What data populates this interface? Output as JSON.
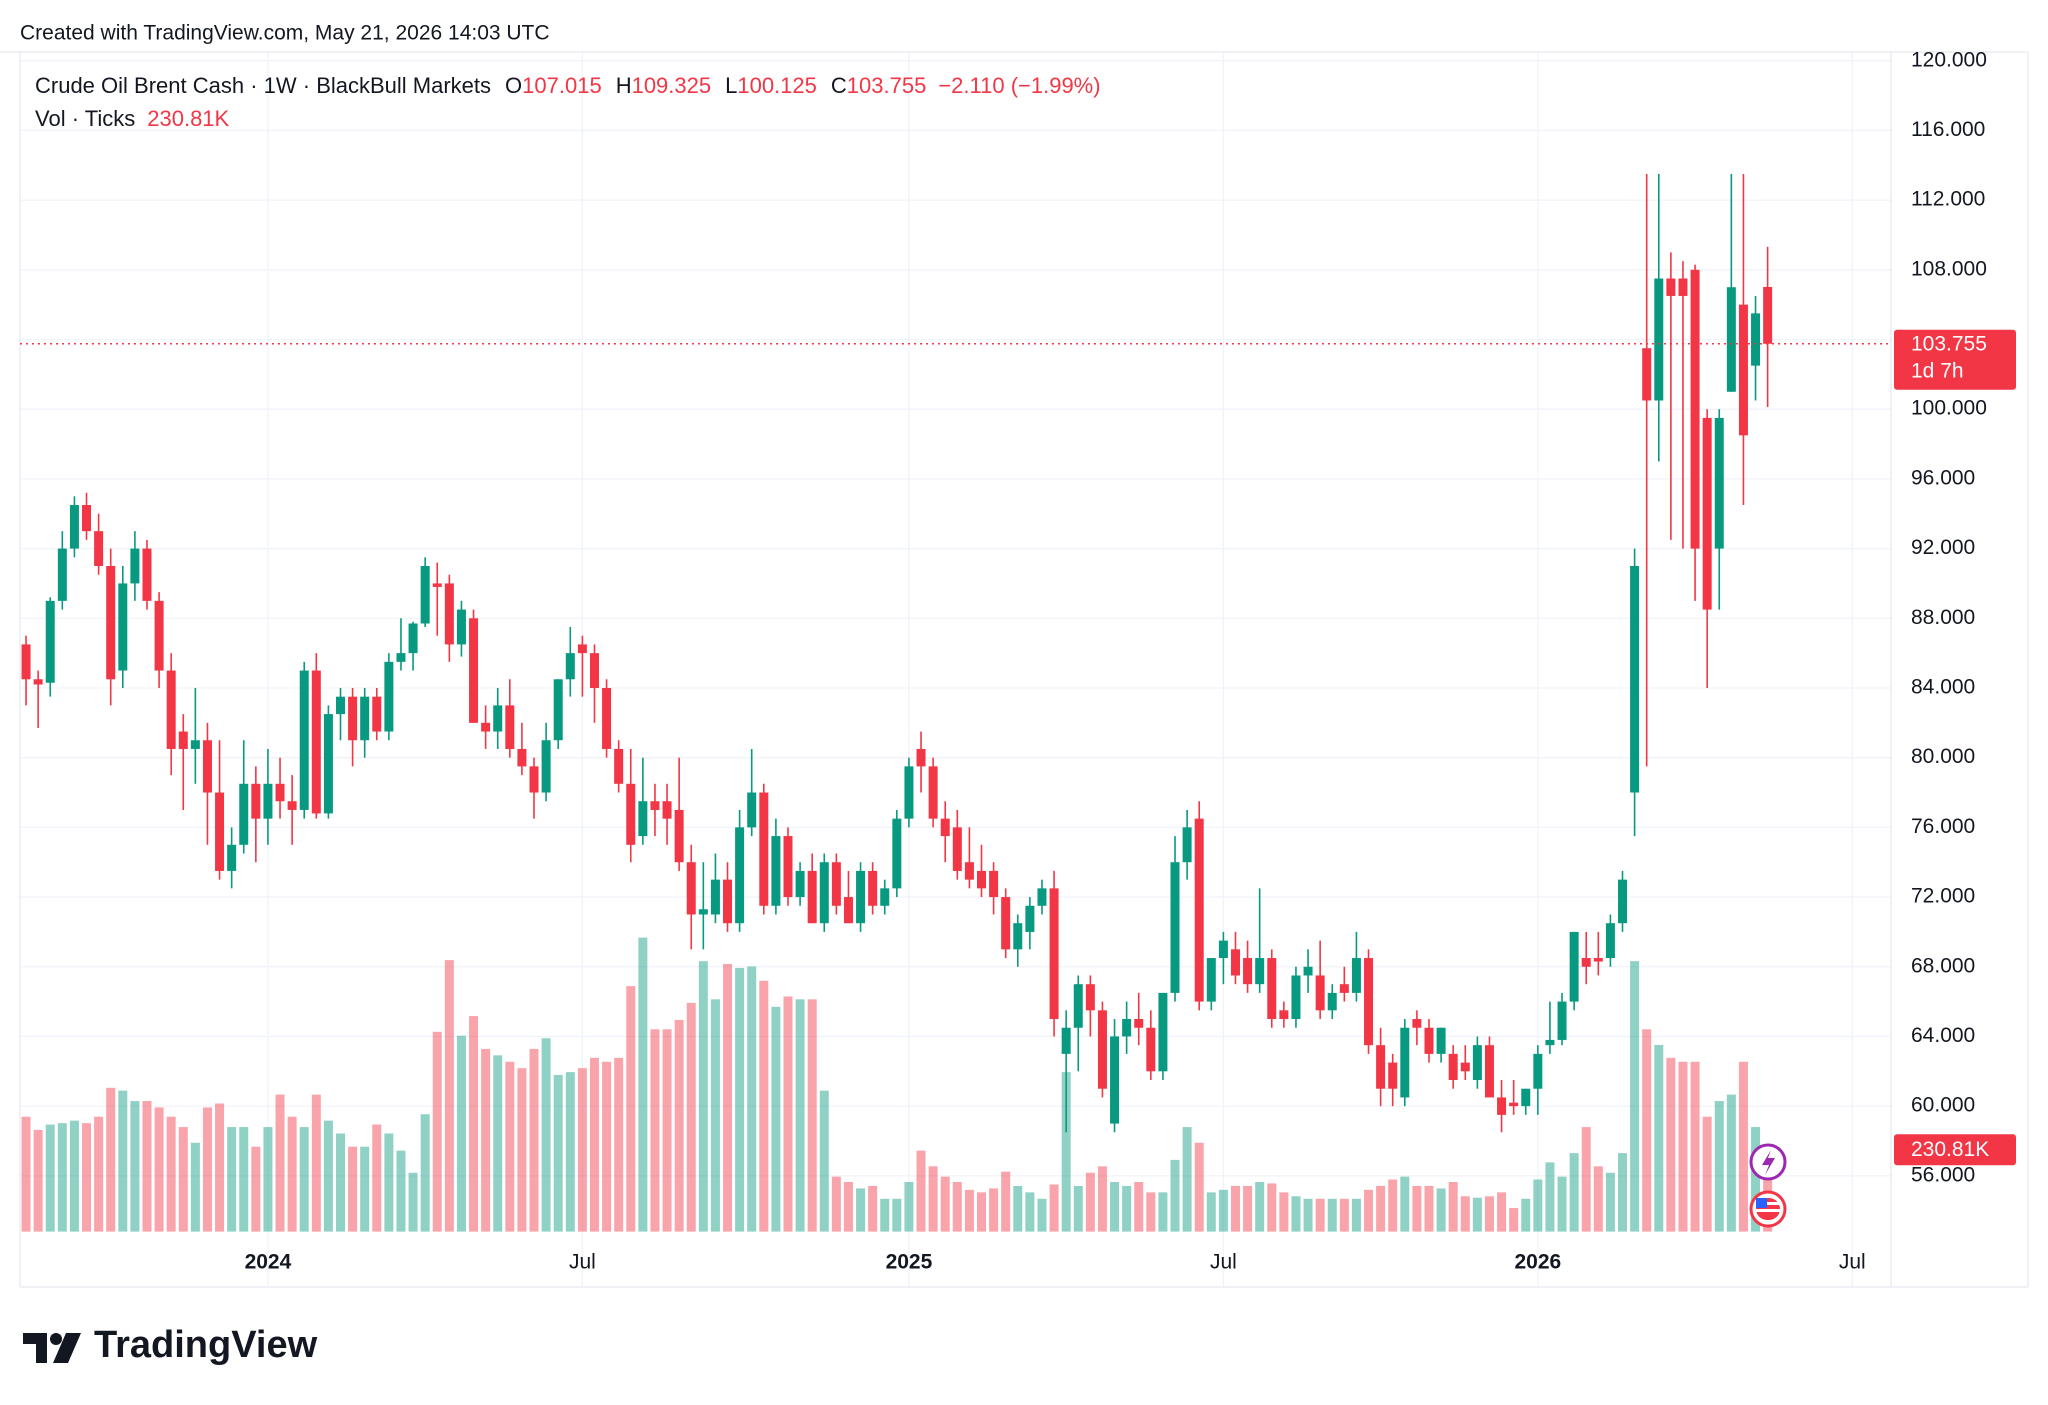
{
  "header": "Created with TradingView.com, May 21, 2026 14:03 UTC",
  "brand": "TradingView",
  "chart_data": {
    "type": "candlestick",
    "title": "Crude Oil Brent Cash · 1W · BlackBull Markets",
    "ohlc_letters": [
      "O",
      "H",
      "L",
      "C"
    ],
    "change": "−2.110 (−1.99%)",
    "countdown": "1d 7h",
    "up_color": "#089981",
    "down_color": "#f23645",
    "grid": true,
    "xlim": [
      -0.5,
      154.2
    ],
    "xticks": [
      {
        "value": 20,
        "label": "2024"
      },
      {
        "value": 46,
        "label": "Jul"
      },
      {
        "value": 73,
        "label": "2025"
      },
      {
        "value": 99,
        "label": "Jul"
      },
      {
        "value": 125,
        "label": "2026"
      },
      {
        "value": 151,
        "label": "Jul"
      }
    ],
    "ylim": [
      52.8,
      120.5
    ],
    "yticks": [
      {
        "value": 56,
        "label": "56.000"
      },
      {
        "value": 60,
        "label": "60.000"
      },
      {
        "value": 64,
        "label": "64.000"
      },
      {
        "value": 68,
        "label": "68.000"
      },
      {
        "value": 72,
        "label": "72.000"
      },
      {
        "value": 76,
        "label": "76.000"
      },
      {
        "value": 80,
        "label": "80.000"
      },
      {
        "value": 84,
        "label": "84.000"
      },
      {
        "value": 88,
        "label": "88.000"
      },
      {
        "value": 92,
        "label": "92.000"
      },
      {
        "value": 96,
        "label": "96.000"
      },
      {
        "value": 100,
        "label": "100.000"
      },
      {
        "value": 104,
        "label": "104.000"
      },
      {
        "value": 108,
        "label": "108.000"
      },
      {
        "value": 112,
        "label": "112.000"
      },
      {
        "value": 116,
        "label": "116.000"
      },
      {
        "value": 120,
        "label": "120.000"
      }
    ],
    "ohlc": [
      [
        86.5,
        87,
        83,
        84.5
      ],
      [
        84.5,
        85,
        81.7,
        84.2
      ],
      [
        84.3,
        89.2,
        83.5,
        89
      ],
      [
        89,
        93,
        88.5,
        92
      ],
      [
        92,
        95,
        91.5,
        94.5
      ],
      [
        94.5,
        95.2,
        92.5,
        93
      ],
      [
        93,
        94,
        90.5,
        91
      ],
      [
        91,
        92,
        83,
        84.5
      ],
      [
        85,
        91,
        84,
        90
      ],
      [
        90,
        93,
        89,
        92
      ],
      [
        92,
        92.5,
        88.5,
        89
      ],
      [
        89,
        89.5,
        84,
        85
      ],
      [
        85,
        86,
        79,
        80.5
      ],
      [
        81.5,
        82.5,
        77,
        80.5
      ],
      [
        80.5,
        84,
        78.5,
        81
      ],
      [
        81,
        82,
        75,
        78
      ],
      [
        78,
        81,
        73,
        73.5
      ],
      [
        73.5,
        76,
        72.5,
        75
      ],
      [
        75,
        81,
        74.5,
        78.5
      ],
      [
        78.5,
        79.5,
        74,
        76.5
      ],
      [
        76.5,
        80.5,
        75,
        78.5
      ],
      [
        78.5,
        80,
        76.5,
        77.5
      ],
      [
        77.5,
        79,
        75,
        77
      ],
      [
        77,
        85.5,
        76.5,
        85
      ],
      [
        85,
        86,
        76.5,
        76.8
      ],
      [
        76.8,
        83,
        76.5,
        82.5
      ],
      [
        82.5,
        84,
        81,
        83.5
      ],
      [
        83.5,
        84,
        79.5,
        81
      ],
      [
        81,
        84,
        80,
        83.5
      ],
      [
        83.5,
        84,
        81,
        81.5
      ],
      [
        81.5,
        86,
        81,
        85.5
      ],
      [
        85.5,
        88,
        85,
        86
      ],
      [
        86,
        87.8,
        85,
        87.7
      ],
      [
        87.7,
        91.5,
        87.5,
        91
      ],
      [
        90,
        91.2,
        87,
        89.8
      ],
      [
        90,
        90.5,
        85.5,
        86.5
      ],
      [
        86.5,
        89,
        85.8,
        88.5
      ],
      [
        88,
        88.5,
        82,
        82
      ],
      [
        82,
        83,
        80.5,
        81.5
      ],
      [
        81.5,
        84,
        80.5,
        83
      ],
      [
        83,
        84.5,
        80,
        80.5
      ],
      [
        80.5,
        82,
        79,
        79.5
      ],
      [
        79.5,
        80,
        76.5,
        78
      ],
      [
        78,
        82,
        77.5,
        81
      ],
      [
        81,
        84.5,
        80.5,
        84.5
      ],
      [
        84.5,
        87.5,
        83.5,
        86
      ],
      [
        86.5,
        87,
        83.5,
        86
      ],
      [
        86,
        86.5,
        82,
        84
      ],
      [
        84,
        84.5,
        80,
        80.5
      ],
      [
        80.5,
        81,
        78,
        78.5
      ],
      [
        78.5,
        80.5,
        74,
        75
      ],
      [
        75.5,
        80,
        75,
        77.5
      ],
      [
        77.5,
        78.5,
        75.5,
        77
      ],
      [
        77.5,
        78.5,
        75,
        76.5
      ],
      [
        77,
        80,
        73.5,
        74
      ],
      [
        74,
        75,
        69,
        71
      ],
      [
        71,
        74,
        69,
        71.3
      ],
      [
        71,
        74.5,
        70.5,
        73
      ],
      [
        73,
        74,
        70,
        70.5
      ],
      [
        70.5,
        77,
        70,
        76
      ],
      [
        76,
        80.5,
        75.5,
        78
      ],
      [
        78,
        78.5,
        71,
        71.5
      ],
      [
        71.5,
        76.5,
        71,
        75.5
      ],
      [
        75.5,
        76,
        71.5,
        72
      ],
      [
        72,
        74,
        71.5,
        73.5
      ],
      [
        73.5,
        74.5,
        70.5,
        70.5
      ],
      [
        70.5,
        74.5,
        70,
        74
      ],
      [
        74,
        74.5,
        71,
        71.5
      ],
      [
        72,
        73.5,
        70.5,
        70.5
      ],
      [
        70.5,
        74,
        70,
        73.5
      ],
      [
        73.5,
        74,
        71,
        71.5
      ],
      [
        71.5,
        73,
        71,
        72.5
      ],
      [
        72.5,
        77,
        72,
        76.5
      ],
      [
        76.5,
        80,
        76,
        79.5
      ],
      [
        80.5,
        81.5,
        78,
        79.5
      ],
      [
        79.5,
        80,
        76,
        76.5
      ],
      [
        76.5,
        77.5,
        74,
        75.5
      ],
      [
        76,
        77,
        73,
        73.5
      ],
      [
        74,
        76,
        72.5,
        73
      ],
      [
        73.5,
        75,
        72,
        72.5
      ],
      [
        73.5,
        74,
        71,
        72
      ],
      [
        72,
        72.5,
        68.5,
        69
      ],
      [
        69,
        71,
        68,
        70.5
      ],
      [
        70,
        72,
        69,
        71.5
      ],
      [
        71.5,
        73,
        71,
        72.5
      ],
      [
        72.5,
        73.5,
        64,
        65
      ],
      [
        63,
        65.5,
        58.5,
        64.5
      ],
      [
        64.5,
        67.5,
        62,
        67
      ],
      [
        67,
        67.5,
        64,
        65.5
      ],
      [
        65.5,
        66,
        60.5,
        61
      ],
      [
        59,
        65,
        58.5,
        64
      ],
      [
        64,
        66,
        63,
        65
      ],
      [
        65,
        66.5,
        63.5,
        64.5
      ],
      [
        64.5,
        65.5,
        61.5,
        62
      ],
      [
        62,
        66.5,
        61.5,
        66.5
      ],
      [
        66.5,
        75.5,
        66,
        74
      ],
      [
        74,
        77,
        73,
        76
      ],
      [
        76.5,
        77.5,
        65.5,
        66
      ],
      [
        66,
        68.5,
        65.5,
        68.5
      ],
      [
        68.5,
        70,
        67,
        69.5
      ],
      [
        69,
        70,
        67,
        67.5
      ],
      [
        68.5,
        69.5,
        66.5,
        67
      ],
      [
        67,
        72.5,
        66.5,
        68.5
      ],
      [
        68.5,
        69,
        64.5,
        65
      ],
      [
        65.5,
        66,
        64.5,
        65
      ],
      [
        65,
        68,
        64.5,
        67.5
      ],
      [
        67.5,
        69,
        66.5,
        68
      ],
      [
        67.5,
        69.5,
        65,
        65.5
      ],
      [
        65.5,
        67,
        65,
        66.5
      ],
      [
        67,
        68,
        66,
        66.5
      ],
      [
        66.5,
        70,
        66,
        68.5
      ],
      [
        68.5,
        69,
        63,
        63.5
      ],
      [
        63.5,
        64.5,
        60,
        61
      ],
      [
        62.5,
        63,
        60,
        61
      ],
      [
        60.5,
        65,
        60,
        64.5
      ],
      [
        65,
        65.5,
        63.5,
        64.5
      ],
      [
        64.5,
        65,
        62.5,
        63
      ],
      [
        63,
        64.5,
        62.5,
        64.5
      ],
      [
        63,
        63.5,
        61,
        61.5
      ],
      [
        62.5,
        63.5,
        61.5,
        62
      ],
      [
        61.5,
        64,
        61,
        63.5
      ],
      [
        63.5,
        64,
        60.5,
        60.5
      ],
      [
        60.5,
        61.5,
        58.5,
        59.5
      ],
      [
        60.2,
        61.5,
        59.5,
        60
      ],
      [
        60,
        61,
        59.5,
        61
      ],
      [
        61,
        63.5,
        59.5,
        63
      ],
      [
        63.5,
        66,
        63,
        63.8
      ],
      [
        63.8,
        66.5,
        63.5,
        66
      ],
      [
        66,
        70,
        65.5,
        70
      ],
      [
        68.5,
        70,
        67,
        68
      ],
      [
        68.5,
        70,
        67.5,
        68.3
      ],
      [
        68.5,
        71,
        68,
        70.5
      ],
      [
        70.5,
        73.5,
        70,
        73
      ],
      [
        78,
        92,
        75.5,
        91
      ],
      [
        103.5,
        113.5,
        79.5,
        100.5
      ],
      [
        100.5,
        113.5,
        97,
        107.5
      ],
      [
        107.5,
        109,
        92.5,
        106.5
      ],
      [
        107.5,
        108.5,
        92,
        106.5
      ],
      [
        108,
        108.3,
        89,
        92
      ],
      [
        99.5,
        100,
        84,
        88.5
      ],
      [
        92,
        100,
        88.5,
        99.5
      ],
      [
        101,
        113.5,
        101,
        107
      ],
      [
        106,
        113.5,
        94.5,
        98.5
      ],
      [
        102.5,
        106.5,
        100.5,
        105.5
      ],
      [
        107.015,
        109.325,
        100.125,
        103.755
      ]
    ],
    "volume": {
      "name": "Vol · Ticks",
      "values": [
        322000,
        285000,
        300000,
        304000,
        311000,
        304000,
        322000,
        403000,
        395000,
        366000,
        366000,
        348000,
        322000,
        293000,
        249000,
        348000,
        359000,
        293000,
        293000,
        238000,
        293000,
        384000,
        322000,
        293000,
        384000,
        311000,
        275000,
        238000,
        238000,
        300000,
        275000,
        227000,
        165000,
        329000,
        560000,
        761000,
        549000,
        604000,
        512000,
        494000,
        476000,
        458000,
        512000,
        542000,
        439000,
        447000,
        458000,
        487000,
        476000,
        487000,
        688000,
        824000,
        567000,
        567000,
        593000,
        641000,
        758000,
        651000,
        750000,
        739000,
        743000,
        703000,
        630000,
        659000,
        651000,
        651000,
        395000,
        154000,
        139000,
        121000,
        128000,
        92000,
        92000,
        139000,
        227000,
        183000,
        154000,
        139000,
        117000,
        110000,
        121000,
        168000,
        128000,
        110000,
        92000,
        132000,
        447000,
        128000,
        165000,
        183000,
        139000,
        128000,
        139000,
        110000,
        110000,
        201000,
        293000,
        249000,
        110000,
        117000,
        128000,
        128000,
        139000,
        135000,
        110000,
        99000,
        92000,
        92000,
        92000,
        92000,
        92000,
        117000,
        128000,
        146000,
        154000,
        128000,
        128000,
        121000,
        139000,
        99000,
        95000,
        99000,
        110000,
        66000,
        92000,
        146000,
        194000,
        154000,
        220000,
        293000,
        183000,
        165000,
        220000,
        758000,
        567000,
        523000,
        487000,
        476000,
        476000,
        322000,
        366000,
        384000,
        476000,
        293000,
        230810
      ],
      "value_labels": {
        "144": "230.81K"
      }
    }
  }
}
